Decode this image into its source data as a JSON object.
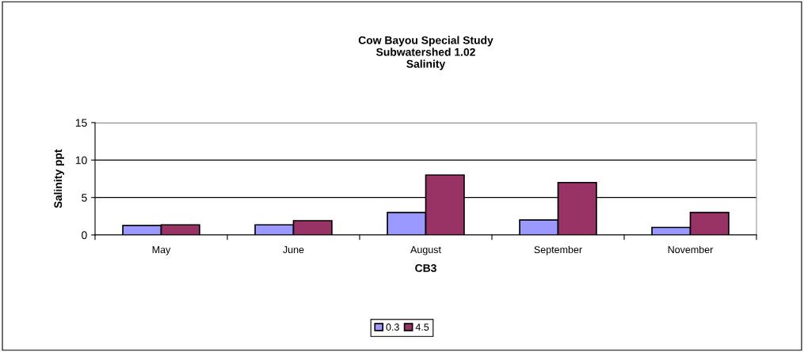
{
  "chart_data": {
    "type": "bar",
    "title": "Cow Bayou Special Study\nSubwatershed 1.02\nSalinity",
    "xlabel": "CB3",
    "ylabel": "Salinity ppt",
    "categories": [
      "May",
      "June",
      "August",
      "September",
      "November"
    ],
    "series": [
      {
        "name": "0.3",
        "color": "#9999ff",
        "values": [
          1.25,
          1.35,
          3.0,
          2.0,
          1.0
        ]
      },
      {
        "name": "4.5",
        "color": "#993366",
        "values": [
          1.35,
          1.9,
          8.0,
          7.0,
          3.0
        ]
      }
    ],
    "ylim": [
      0,
      15
    ],
    "yticks": [
      0,
      5,
      10,
      15
    ],
    "grid": "y",
    "legend": "bottom"
  }
}
